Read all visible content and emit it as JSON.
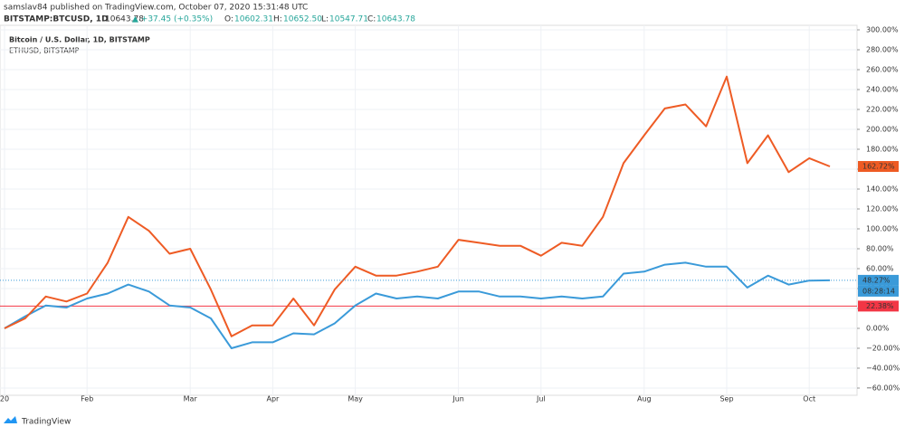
{
  "header": {
    "author_line": "samslav84 published on TradingView.com, October 07, 2020 15:31:48 UTC",
    "symbol": "BITSTAMP:BTCUSD, 1D",
    "last": "10643.78",
    "change": "▲ +37.45 (+0.35%)",
    "o_label": "O:",
    "o": "10602.31",
    "h_label": "H:",
    "h": "10652.50",
    "l_label": "L:",
    "l": "10547.71",
    "c_label": "C:",
    "c": "10643.78"
  },
  "footer": {
    "brand": "TradingView"
  },
  "chart_data": {
    "type": "line",
    "categories": [
      "20",
      null,
      null,
      null,
      "Feb",
      null,
      null,
      null,
      null,
      "Mar",
      null,
      null,
      null,
      "Apr",
      null,
      null,
      null,
      "May",
      null,
      null,
      null,
      null,
      "Jun",
      null,
      null,
      null,
      "Jul",
      null,
      null,
      null,
      null,
      "Aug",
      null,
      null,
      null,
      "Sep",
      null,
      null,
      null,
      "Oct",
      null
    ],
    "series": [
      {
        "name": "Bitcoin / U.S. Dollar, 1D, BITSTAMP",
        "color": "#3a9ad9",
        "values": [
          0,
          12,
          23,
          21,
          30,
          35,
          44,
          37,
          23,
          21,
          10,
          -20,
          -14,
          -14,
          -5,
          -6,
          5,
          23,
          35,
          30,
          32,
          30,
          37,
          37,
          32,
          32,
          30,
          32,
          30,
          32,
          55,
          57,
          64,
          66,
          62,
          62,
          41,
          53,
          44,
          48,
          48.27
        ]
      },
      {
        "name": "ETHUSD, BITSTAMP",
        "color": "#ee5b24",
        "values": [
          0,
          10,
          32,
          27,
          35,
          66,
          112,
          98,
          75,
          80,
          39,
          -8,
          3,
          3,
          30,
          3,
          39,
          62,
          53,
          53,
          57,
          62,
          89,
          86,
          83,
          83,
          73,
          86,
          83,
          112,
          166,
          194,
          221,
          225,
          203,
          253,
          166,
          194,
          157,
          171,
          162.72
        ]
      }
    ],
    "ylim": [
      -60,
      300
    ],
    "yticks": [
      {
        "value": 300,
        "label": "300.00%"
      },
      {
        "value": 280,
        "label": "280.00%"
      },
      {
        "value": 260,
        "label": "260.00%"
      },
      {
        "value": 240,
        "label": "240.00%"
      },
      {
        "value": 220,
        "label": "220.00%"
      },
      {
        "value": 200,
        "label": "200.00%"
      },
      {
        "value": 180,
        "label": "180.00%"
      },
      {
        "value": 160,
        "label": "160.00%"
      },
      {
        "value": 140,
        "label": "140.00%"
      },
      {
        "value": 120,
        "label": "120.00%"
      },
      {
        "value": 100,
        "label": "100.00%"
      },
      {
        "value": 80,
        "label": "80.00%"
      },
      {
        "value": 60,
        "label": "60.00%"
      },
      {
        "value": 40,
        "label": "40.00%"
      },
      {
        "value": 20,
        "label": "20.00%"
      },
      {
        "value": 0,
        "label": "0.00%"
      },
      {
        "value": -20,
        "label": "−20.00%"
      },
      {
        "value": -40,
        "label": "−40.00%"
      },
      {
        "value": -60,
        "label": "−60.00%"
      }
    ],
    "grid": true,
    "price_labels": [
      {
        "value": 162.72,
        "label": "162.72%",
        "color": "#ee5b24"
      },
      {
        "value": 48.27,
        "label": "48.27%",
        "color": "#3a9ad9"
      }
    ],
    "countdown": "08:28:14",
    "hline": {
      "value": 22.38,
      "label": "22.38%",
      "color": "#f23645"
    }
  }
}
